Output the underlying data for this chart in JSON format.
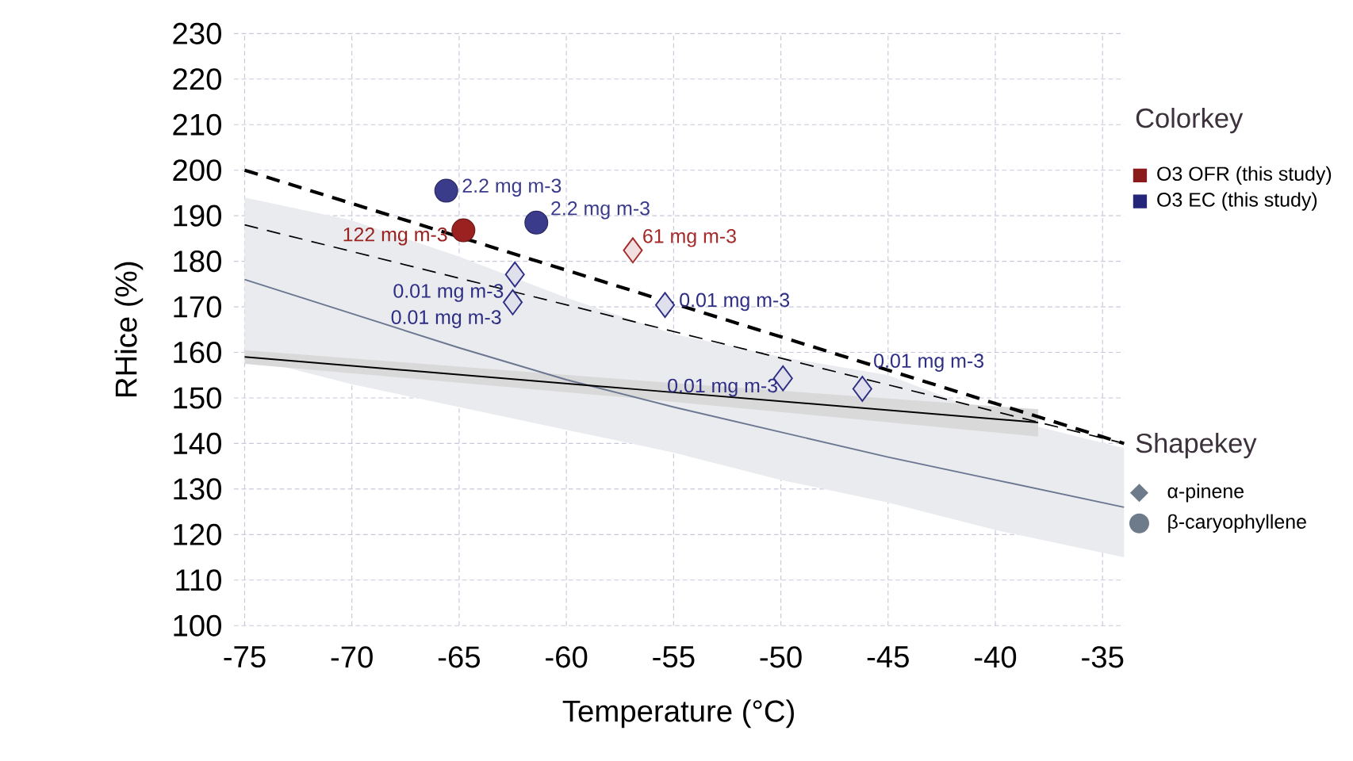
{
  "chart_data": {
    "type": "scatter",
    "xlabel": "Temperature (°C)",
    "ylabel": "RHice (%)",
    "legend_title": [
      "Colorkey",
      "Shapekey"
    ],
    "xlim": [
      -75.5,
      -34
    ],
    "ylim": [
      100,
      230
    ],
    "xticks": [
      -75,
      -70,
      -65,
      -60,
      -55,
      -50,
      -45,
      -40,
      -35
    ],
    "yticks": [
      100,
      110,
      120,
      130,
      140,
      150,
      160,
      170,
      180,
      190,
      200,
      210,
      220,
      230
    ],
    "grid": true,
    "legend": "right",
    "series": [
      {
        "type": "line",
        "color": "#6b7790",
        "line_style": "solid",
        "x": [
          -75,
          -70,
          -65,
          -60,
          -55,
          -50,
          -45,
          -40,
          -34
        ],
        "values": [
          176,
          168.5,
          161,
          154,
          148,
          142.5,
          137,
          132,
          126
        ],
        "lower": [
          159,
          153,
          148,
          143,
          138,
          132,
          127,
          121,
          115
        ],
        "upper": [
          194,
          189,
          181,
          172,
          164,
          159,
          155,
          146,
          139
        ]
      },
      {
        "type": "line",
        "color": "#000000",
        "line_style": "solid",
        "x": [
          -75,
          -56.5,
          -38
        ],
        "values": [
          159,
          151.8,
          144.6
        ],
        "lower": [
          157.5,
          149.8,
          141.5
        ],
        "upper": [
          160.5,
          153.8,
          147.5
        ]
      },
      {
        "type": "line",
        "color": "#000000",
        "line_style": "dashed",
        "x": [
          -75,
          -34
        ],
        "values": [
          200,
          140
        ]
      },
      {
        "type": "line",
        "color": "#000000",
        "line_style": "dashed",
        "x": [
          -75,
          -34
        ],
        "values": [
          188,
          140
        ]
      },
      {
        "color": "#3b3b8c",
        "marker": "circle",
        "x": [
          -65.6,
          -61.4
        ],
        "values": [
          195.5,
          188.5
        ]
      },
      {
        "color": "#9b2020",
        "marker": "circle",
        "x": [
          -64.8
        ],
        "values": [
          186.8
        ]
      },
      {
        "color": "#2e2e85",
        "marker": "diamond",
        "x": [
          -62.4,
          -62.5,
          -55.4,
          -49.9,
          -46.2
        ],
        "values": [
          177.1,
          171,
          170.4,
          154.3,
          152
        ]
      },
      {
        "color": "#a52a2a",
        "marker": "diamond",
        "x": [
          -56.9
        ],
        "values": [
          182.4
        ]
      },
      {
        "name": "O3 OFR (this study)",
        "color": "#8b1a1a",
        "marker": "square"
      },
      {
        "name": "O3 EC (this study)",
        "color": "#25257a",
        "marker": "square"
      },
      {
        "name": "α-pinene",
        "color": "#6e7b8b",
        "marker": "diamond"
      },
      {
        "name": "β-caryophyllene",
        "color": "#6e7b8b",
        "marker": "circle"
      }
    ],
    "annotations": [
      {
        "text": "2.2 mg m-3",
        "x": -65.6,
        "y": 195.5
      },
      {
        "text": "2.2 mg m-3",
        "x": -61.4,
        "y": 188.5
      },
      {
        "text": "122 mg m-3",
        "x": -64.8,
        "y": 186.8
      },
      {
        "text": "61 mg m-3",
        "x": -56.9,
        "y": 182.4
      },
      {
        "text": "0.01 mg m-3",
        "x": -62.4,
        "y": 177.1
      },
      {
        "text": "0.01 mg m-3",
        "x": -62.5,
        "y": 171
      },
      {
        "text": "0.01 mg m-3",
        "x": -55.4,
        "y": 170.4
      },
      {
        "text": "0.01 mg m-3",
        "x": -49.9,
        "y": 154.3
      },
      {
        "text": "0.01 mg m-3",
        "x": -46.2,
        "y": 152
      }
    ]
  }
}
